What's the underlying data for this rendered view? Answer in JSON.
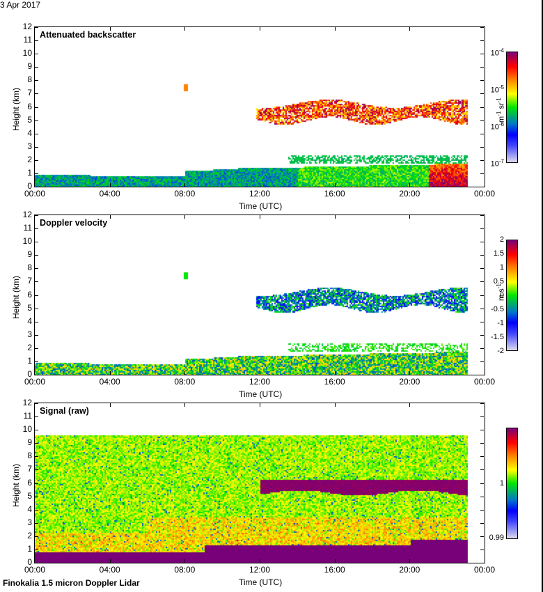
{
  "date_label": "3 Apr 2017",
  "footer_label": "Finokalia 1.5 micron Doppler Lidar",
  "chart_data": [
    {
      "type": "heatmap",
      "title": "Attenuated backscatter",
      "xlabel": "Time (UTC)",
      "ylabel": "Height (km)",
      "x_ticks": [
        "00:00",
        "04:00",
        "08:00",
        "12:00",
        "16:00",
        "20:00",
        "00:00"
      ],
      "x_range_hours": [
        0,
        24
      ],
      "y_ticks": [
        "0",
        "1",
        "2",
        "3",
        "4",
        "5",
        "6",
        "7",
        "8",
        "9",
        "10",
        "11",
        "12"
      ],
      "y_range_km": [
        0,
        12
      ],
      "colorbar": {
        "scale": "log",
        "range": [
          1e-07,
          0.0001
        ],
        "tick_labels": [
          "10-7",
          "10-6",
          "10-5",
          "10-4"
        ],
        "unit": "m-1 sr-1"
      },
      "features": [
        {
          "name": "boundary layer",
          "time_h": [
            0,
            23
          ],
          "height_km": [
            0,
            1.0
          ],
          "note": "rises to ~1.4 km after 09:00",
          "level": "low (~1e-6)"
        },
        {
          "name": "elevated layer",
          "time_h": [
            13.5,
            23
          ],
          "height_km": [
            1.8,
            2.4
          ],
          "level": "~2e-6"
        },
        {
          "name": "cirrus / mid cloud",
          "time_h": [
            11.5,
            23
          ],
          "height_km": [
            4.8,
            6.8
          ],
          "level": "1e-5 to 1e-4"
        },
        {
          "name": "near-surface aerosol",
          "time_h": [
            21,
            23
          ],
          "height_km": [
            0,
            1.8
          ],
          "level": "1e-5 to 5e-5"
        }
      ]
    },
    {
      "type": "heatmap",
      "title": "Doppler velocity",
      "xlabel": "Time (UTC)",
      "ylabel": "Height (km)",
      "x_ticks": [
        "00:00",
        "04:00",
        "08:00",
        "12:00",
        "16:00",
        "20:00",
        "00:00"
      ],
      "x_range_hours": [
        0,
        24
      ],
      "y_ticks": [
        "0",
        "1",
        "2",
        "3",
        "4",
        "5",
        "6",
        "7",
        "8",
        "9",
        "10",
        "11",
        "12"
      ],
      "y_range_km": [
        0,
        12
      ],
      "colorbar": {
        "scale": "linear",
        "range": [
          -2,
          2
        ],
        "tick_labels": [
          "2",
          "1.5",
          "1",
          "0.5",
          "0",
          "-0.5",
          "-1",
          "-1.5",
          "-2"
        ],
        "unit": "m s-1"
      },
      "features": [
        {
          "name": "boundary layer",
          "time_h": [
            0,
            23
          ],
          "height_km": [
            0,
            1.4
          ],
          "level": "-0.5 to 0.5"
        },
        {
          "name": "cloud layer",
          "time_h": [
            11.5,
            23
          ],
          "height_km": [
            4.8,
            6.8
          ],
          "level": "-1.5 to 0"
        }
      ]
    },
    {
      "type": "heatmap",
      "title": "Signal (raw)",
      "xlabel": "Time (UTC)",
      "ylabel": "Height (km)",
      "x_ticks": [
        "00:00",
        "04:00",
        "08:00",
        "12:00",
        "16:00",
        "20:00",
        "00:00"
      ],
      "x_range_hours": [
        0,
        24
      ],
      "y_ticks": [
        "0",
        "1",
        "2",
        "3",
        "4",
        "5",
        "6",
        "7",
        "8",
        "9",
        "10",
        "11",
        "12"
      ],
      "y_range_km": [
        0,
        12
      ],
      "colorbar": {
        "scale": "linear",
        "range": [
          0.99,
          1.01
        ],
        "tick_labels": [
          "1",
          "0.99"
        ],
        "unit": ""
      },
      "features": [
        {
          "name": "noise background",
          "time_h": [
            0,
            23
          ],
          "height_km": [
            0,
            9.6
          ],
          "level": "~1.0"
        },
        {
          "name": "strong boundary layer",
          "time_h": [
            0,
            23
          ],
          "height_km": [
            0,
            0.9
          ],
          "note": "rises to ~1.8 km late day",
          "level": ">1.01"
        },
        {
          "name": "cloud layer",
          "time_h": [
            12,
            23
          ],
          "height_km": [
            5.2,
            6.4
          ],
          "level": ">1.01"
        }
      ]
    }
  ]
}
